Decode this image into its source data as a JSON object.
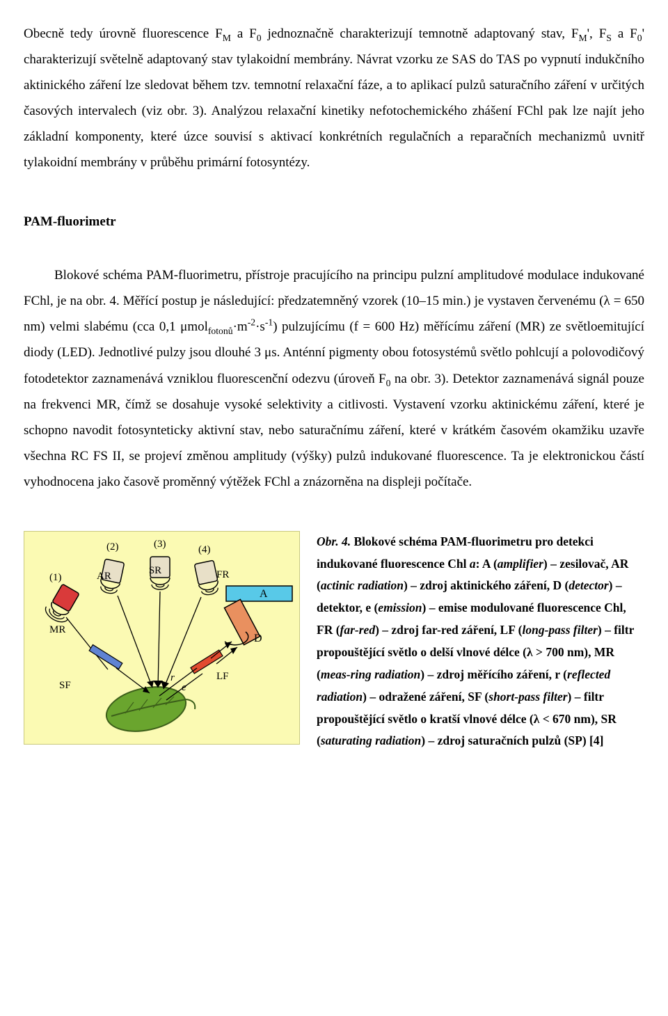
{
  "paragraph1": {
    "t1": "Obecně tedy úrovně fluorescence F",
    "sub_M": "M",
    "t2": " a F",
    "sub_0a": "0",
    "t3": " jednoznačně charakterizují temnotně adaptovaný stav, F",
    "sub_Mb": "M",
    "t4": "', F",
    "sub_S": "S",
    "t5": " a F",
    "sub_0b": "0",
    "t6": "' charakterizují světelně adaptovaný stav tylakoidní membrány. Návrat vzorku ze SAS do TAS po vypnutí indukčního aktinického záření lze sledovat během tzv. temnotní relaxační fáze, a to aplikací pulzů saturačního záření v určitých časových intervalech (viz obr. 3). Analýzou relaxační kinetiky nefotochemického zhášení FChl pak lze najít jeho základní komponenty, které úzce souvisí s aktivací konkrétních regulačních a reparačních mechanizmů uvnitř tylakoidní membrány v průběhu primární fotosyntézy."
  },
  "section_title": "PAM-fluorimetr",
  "paragraph2": {
    "t1": "Blokové schéma PAM-fluorimetru, přístroje pracujícího na principu pulzní amplitudové modulace indukované FChl, je na obr. 4. Měřící postup je následující: předzatemněný vzorek (10–15 min.) je vystaven červenému (λ = 650 nm) velmi slabému (cca 0,1 μmol",
    "sub_fotonu": "fotonů",
    "t2": "·m",
    "sup_m2": "-2",
    "t3": "·s",
    "sup_s1": "-1",
    "t4": ") pulzujícímu (f = 600 Hz) měřícímu záření (MR) ze světloemitující diody (LED). Jednotlivé pulzy jsou dlouhé 3 μs. Anténní pigmenty obou fotosystémů světlo pohlcují a polovodičový fotodetektor zaznamenává vzniklou fluorescenční odezvu (úroveň F",
    "sub_0": "0",
    "t5": " na obr. 3). Detektor zaznamenává signál pouze na frekvenci MR, čímž se dosahuje vysoké selektivity a citlivosti. Vystavení vzorku aktinickému záření, které je schopno navodit fotosynteticky aktivní stav, nebo saturačnímu záření, které v krátkém časovém okamžiku uzavře všechna RC FS II, se projeví změnou amplitudy (výšky) pulzů indukované fluorescence. Ta je elektronickou částí vyhodnocena jako časově proměnný výtěžek FChl a znázorněna na displeji počítače."
  },
  "caption": {
    "c1": "Obr. 4.",
    "c2": " Blokové schéma PAM-fluorimetru pro detekci indukované fluorescence Chl ",
    "c_a": "a",
    "c3": ": A (",
    "c_amplifier": "amplifier",
    "c4": ") – zesilovač, AR (",
    "c_actinic": "actinic radiation",
    "c5": ") – zdroj aktinického záření, D (",
    "c_detector": "detector",
    "c6": ") – detektor, e (",
    "c_emission": "emission",
    "c7": ") – emise modulované fluorescence Chl, FR (",
    "c_farred": "far-red",
    "c8": ") – zdroj far-red záření, LF (",
    "c_lpf": "long-pass filter",
    "c9": ") – filtr propouštějící světlo o delší vlnové délce (λ > 700 nm), MR (",
    "c_mr": "meas-ring radiation",
    "c10": ") – zdroj měřícího záření, r (",
    "c_refl": "reflected radiation",
    "c11": ") – odražené záření, SF (",
    "c_spf": "short-pass filter",
    "c12": ") – filtr propouštějící světlo o kratší vlnové délce (λ < 670 nm), SR (",
    "c_sr": "saturating radiation",
    "c13": ") – zdroj saturačních pulzů (SP) [4]"
  },
  "diagram": {
    "background": "#fbfab3",
    "labels": {
      "n1": "(1)",
      "n2": "(2)",
      "n3": "(3)",
      "n4": "(4)",
      "MR": "MR",
      "AR": "AR",
      "SR": "SR",
      "FR": "FR",
      "A": "A",
      "D": "D",
      "SF": "SF",
      "LF": "LF",
      "r": "r",
      "e": "e"
    },
    "colors": {
      "MR_body": "#d93a3a",
      "AR_body": "#e8e0c8",
      "SR_body": "#e8e0c8",
      "FR_body": "#e8e0c8",
      "A_body": "#58c9e8",
      "D_body": "#e9905f",
      "SF_fill": "#5f83d3",
      "LF_fill": "#e24b2f",
      "leaf_fill": "#6aa52e",
      "leaf_stroke": "#3c5f1a",
      "line": "#000"
    }
  }
}
